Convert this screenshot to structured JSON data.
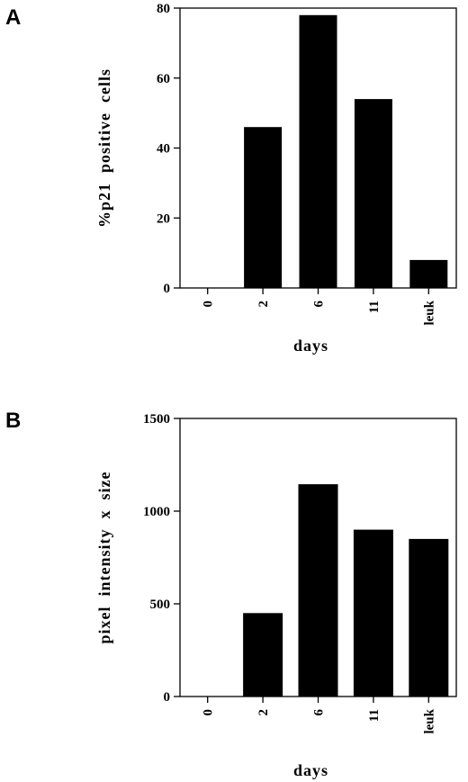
{
  "chart_data": [
    {
      "panel": "A",
      "type": "bar",
      "categories": [
        "0",
        "2",
        "6",
        "11",
        "leuk"
      ],
      "values": [
        0,
        46,
        78,
        54,
        8
      ],
      "title": "",
      "xlabel": "days",
      "ylabel": "%p21  positive  cells",
      "ylim": [
        0,
        80
      ],
      "yticks": [
        0,
        20,
        40,
        60,
        80
      ],
      "bar_color": "#000000",
      "grid": false,
      "legend": "none"
    },
    {
      "panel": "B",
      "type": "bar",
      "categories": [
        "0",
        "2",
        "6",
        "11",
        "leuk"
      ],
      "values": [
        0,
        450,
        1145,
        900,
        850
      ],
      "title": "",
      "xlabel": "days",
      "ylabel": "pixel  intensity  x  size",
      "ylim": [
        0,
        1500
      ],
      "yticks": [
        0,
        500,
        1000,
        1500
      ],
      "bar_color": "#000000",
      "grid": false,
      "legend": "none"
    }
  ]
}
